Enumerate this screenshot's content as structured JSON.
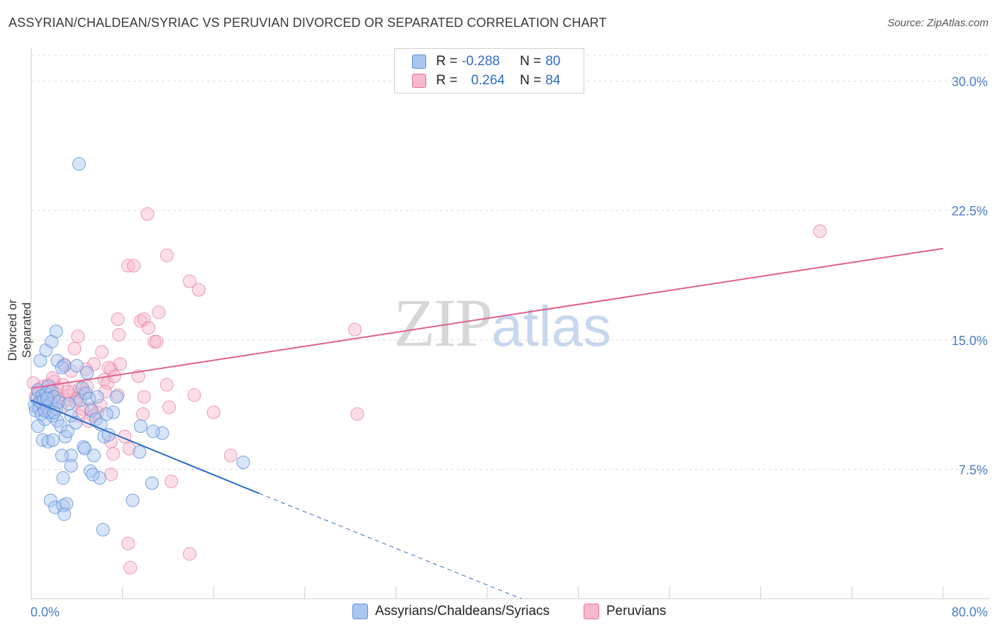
{
  "title": "ASSYRIAN/CHALDEAN/SYRIAC VS PERUVIAN DIVORCED OR SEPARATED CORRELATION CHART",
  "source": "Source: ZipAtlas.com",
  "watermark": {
    "zip": "ZIP",
    "atlas": "atlas"
  },
  "colors": {
    "blue": "#5b8fd9",
    "blue_fill": "#a9c6ef",
    "pink": "#e5709a",
    "pink_fill": "#f6b9cc",
    "axis_tick": "#4a7cc7"
  },
  "legend": {
    "series1": {
      "r_label": "R = ",
      "r_value": "-0.288",
      "n_label": "N = ",
      "n_value": "80"
    },
    "series2": {
      "r_label": "R = ",
      "r_value": "0.264",
      "n_label": "N = ",
      "n_value": "84"
    }
  },
  "bottom_legend": {
    "series1": "Assyrians/Chaldeans/Syriacs",
    "series2": "Peruvians"
  },
  "chart_data": {
    "type": "scatter",
    "title": "ASSYRIAN/CHALDEAN/SYRIAC VS PERUVIAN DIVORCED OR SEPARATED CORRELATION CHART",
    "xlabel": "",
    "ylabel": "Divorced or Separated",
    "xlim": [
      0,
      80
    ],
    "ylim": [
      0,
      31.5
    ],
    "x_tick_labels": [
      "0.0%",
      "80.0%"
    ],
    "y_ticks": [
      7.5,
      15.0,
      22.5,
      30.0
    ],
    "y_tick_labels": [
      "7.5%",
      "15.0%",
      "22.5%",
      "30.0%"
    ],
    "grid": true,
    "series": [
      {
        "name": "Assyrians/Chaldeans/Syriacs",
        "color": "#5b8fd9",
        "R": -0.288,
        "N": 80,
        "trend": {
          "x0": 0,
          "y0": 11.5,
          "x1": 20,
          "y1": 6.1,
          "dash_to_x": 43,
          "dash_to_y": 0
        },
        "points": [
          [
            0.3,
            11.2
          ],
          [
            0.4,
            10.9
          ],
          [
            0.5,
            11.6
          ],
          [
            0.6,
            12.1
          ],
          [
            0.7,
            11.0
          ],
          [
            0.8,
            11.4
          ],
          [
            0.9,
            10.7
          ],
          [
            1.0,
            11.8
          ],
          [
            1.1,
            11.5
          ],
          [
            1.2,
            10.4
          ],
          [
            1.3,
            11.9
          ],
          [
            1.4,
            11.1
          ],
          [
            1.5,
            12.3
          ],
          [
            1.6,
            10.8
          ],
          [
            1.7,
            11.3
          ],
          [
            1.8,
            12.0
          ],
          [
            1.9,
            10.6
          ],
          [
            2.0,
            11.7
          ],
          [
            2.2,
            11.0
          ],
          [
            2.4,
            11.4
          ],
          [
            0.8,
            13.8
          ],
          [
            1.3,
            14.4
          ],
          [
            1.8,
            14.9
          ],
          [
            2.3,
            13.8
          ],
          [
            2.9,
            13.5
          ],
          [
            2.2,
            15.5
          ],
          [
            2.7,
            13.4
          ],
          [
            4.2,
            25.2
          ],
          [
            0.6,
            10.0
          ],
          [
            1.0,
            9.2
          ],
          [
            1.5,
            9.1
          ],
          [
            1.9,
            9.2
          ],
          [
            2.3,
            10.3
          ],
          [
            2.6,
            10.0
          ],
          [
            3.0,
            9.4
          ],
          [
            3.2,
            9.7
          ],
          [
            3.5,
            10.6
          ],
          [
            3.9,
            10.2
          ],
          [
            4.3,
            11.5
          ],
          [
            4.5,
            12.2
          ],
          [
            4.8,
            11.9
          ],
          [
            5.1,
            11.6
          ],
          [
            5.3,
            10.9
          ],
          [
            5.7,
            10.4
          ],
          [
            6.1,
            10.1
          ],
          [
            6.4,
            9.4
          ],
          [
            6.8,
            9.5
          ],
          [
            7.2,
            10.8
          ],
          [
            7.5,
            11.7
          ],
          [
            3.5,
            8.3
          ],
          [
            4.6,
            8.8
          ],
          [
            4.7,
            8.7
          ],
          [
            5.5,
            8.3
          ],
          [
            5.2,
            7.4
          ],
          [
            6.0,
            7.0
          ],
          [
            2.8,
            7.0
          ],
          [
            3.5,
            7.7
          ],
          [
            2.7,
            8.3
          ],
          [
            5.4,
            7.2
          ],
          [
            1.7,
            5.7
          ],
          [
            2.1,
            5.3
          ],
          [
            2.8,
            5.4
          ],
          [
            3.1,
            5.5
          ],
          [
            2.9,
            4.9
          ],
          [
            6.3,
            4.0
          ],
          [
            8.9,
            5.7
          ],
          [
            10.6,
            6.7
          ],
          [
            9.5,
            8.5
          ],
          [
            11.5,
            9.6
          ],
          [
            10.7,
            9.7
          ],
          [
            9.6,
            10.0
          ],
          [
            18.6,
            7.9
          ],
          [
            4.9,
            13.1
          ],
          [
            5.8,
            11.7
          ],
          [
            6.6,
            10.7
          ],
          [
            1.2,
            10.9
          ],
          [
            2.0,
            10.8
          ],
          [
            3.3,
            11.3
          ],
          [
            4.0,
            13.5
          ],
          [
            1.4,
            11.6
          ]
        ]
      },
      {
        "name": "Peruvians",
        "color": "#e5709a",
        "R": 0.264,
        "N": 84,
        "trend": {
          "x0": 0,
          "y0": 12.2,
          "x1": 80,
          "y1": 20.3
        },
        "points": [
          [
            0.2,
            12.5
          ],
          [
            0.4,
            11.7
          ],
          [
            0.6,
            12.0
          ],
          [
            0.8,
            11.5
          ],
          [
            1.0,
            12.3
          ],
          [
            1.2,
            11.4
          ],
          [
            1.4,
            11.8
          ],
          [
            1.6,
            12.1
          ],
          [
            1.8,
            11.3
          ],
          [
            2.0,
            12.6
          ],
          [
            2.2,
            11.9
          ],
          [
            2.5,
            11.6
          ],
          [
            2.8,
            12.4
          ],
          [
            3.1,
            11.5
          ],
          [
            3.4,
            11.8
          ],
          [
            3.7,
            12.0
          ],
          [
            4.0,
            11.6
          ],
          [
            4.3,
            12.2
          ],
          [
            4.6,
            11.9
          ],
          [
            4.9,
            12.3
          ],
          [
            5.2,
            11.0
          ],
          [
            5.5,
            10.6
          ],
          [
            5.8,
            10.8
          ],
          [
            6.1,
            11.2
          ],
          [
            6.4,
            12.7
          ],
          [
            6.7,
            12.5
          ],
          [
            7.0,
            13.3
          ],
          [
            7.3,
            12.9
          ],
          [
            7.6,
            11.8
          ],
          [
            3.8,
            14.5
          ],
          [
            4.1,
            15.2
          ],
          [
            6.2,
            14.3
          ],
          [
            5.5,
            13.6
          ],
          [
            7.8,
            13.6
          ],
          [
            4.8,
            13.3
          ],
          [
            2.9,
            13.6
          ],
          [
            3.5,
            13.2
          ],
          [
            7.6,
            16.2
          ],
          [
            7.7,
            15.3
          ],
          [
            8.5,
            19.3
          ],
          [
            9.0,
            19.3
          ],
          [
            10.2,
            22.3
          ],
          [
            11.9,
            19.9
          ],
          [
            9.6,
            16.1
          ],
          [
            9.9,
            16.2
          ],
          [
            11.2,
            16.6
          ],
          [
            10.3,
            15.7
          ],
          [
            10.8,
            14.9
          ],
          [
            11.0,
            14.9
          ],
          [
            13.9,
            18.4
          ],
          [
            14.7,
            17.9
          ],
          [
            11.9,
            12.4
          ],
          [
            12.1,
            11.1
          ],
          [
            14.3,
            11.8
          ],
          [
            9.9,
            11.7
          ],
          [
            9.8,
            10.7
          ],
          [
            16.0,
            10.8
          ],
          [
            28.4,
            15.6
          ],
          [
            28.6,
            10.7
          ],
          [
            17.5,
            8.3
          ],
          [
            8.2,
            9.4
          ],
          [
            8.6,
            8.7
          ],
          [
            7.0,
            9.1
          ],
          [
            7.2,
            8.4
          ],
          [
            7.0,
            7.2
          ],
          [
            12.3,
            6.8
          ],
          [
            8.5,
            3.2
          ],
          [
            8.7,
            1.8
          ],
          [
            13.9,
            2.6
          ],
          [
            69.2,
            21.3
          ],
          [
            2.3,
            12.2
          ],
          [
            1.5,
            12.4
          ],
          [
            3.2,
            12.0
          ],
          [
            4.5,
            11.0
          ],
          [
            5.0,
            10.3
          ],
          [
            2.6,
            11.1
          ],
          [
            3.9,
            11.4
          ],
          [
            1.1,
            11.0
          ],
          [
            9.4,
            12.9
          ],
          [
            6.8,
            13.4
          ],
          [
            6.5,
            12.0
          ],
          [
            4.2,
            10.6
          ],
          [
            1.9,
            12.8
          ],
          [
            0.9,
            11.3
          ]
        ]
      }
    ]
  }
}
